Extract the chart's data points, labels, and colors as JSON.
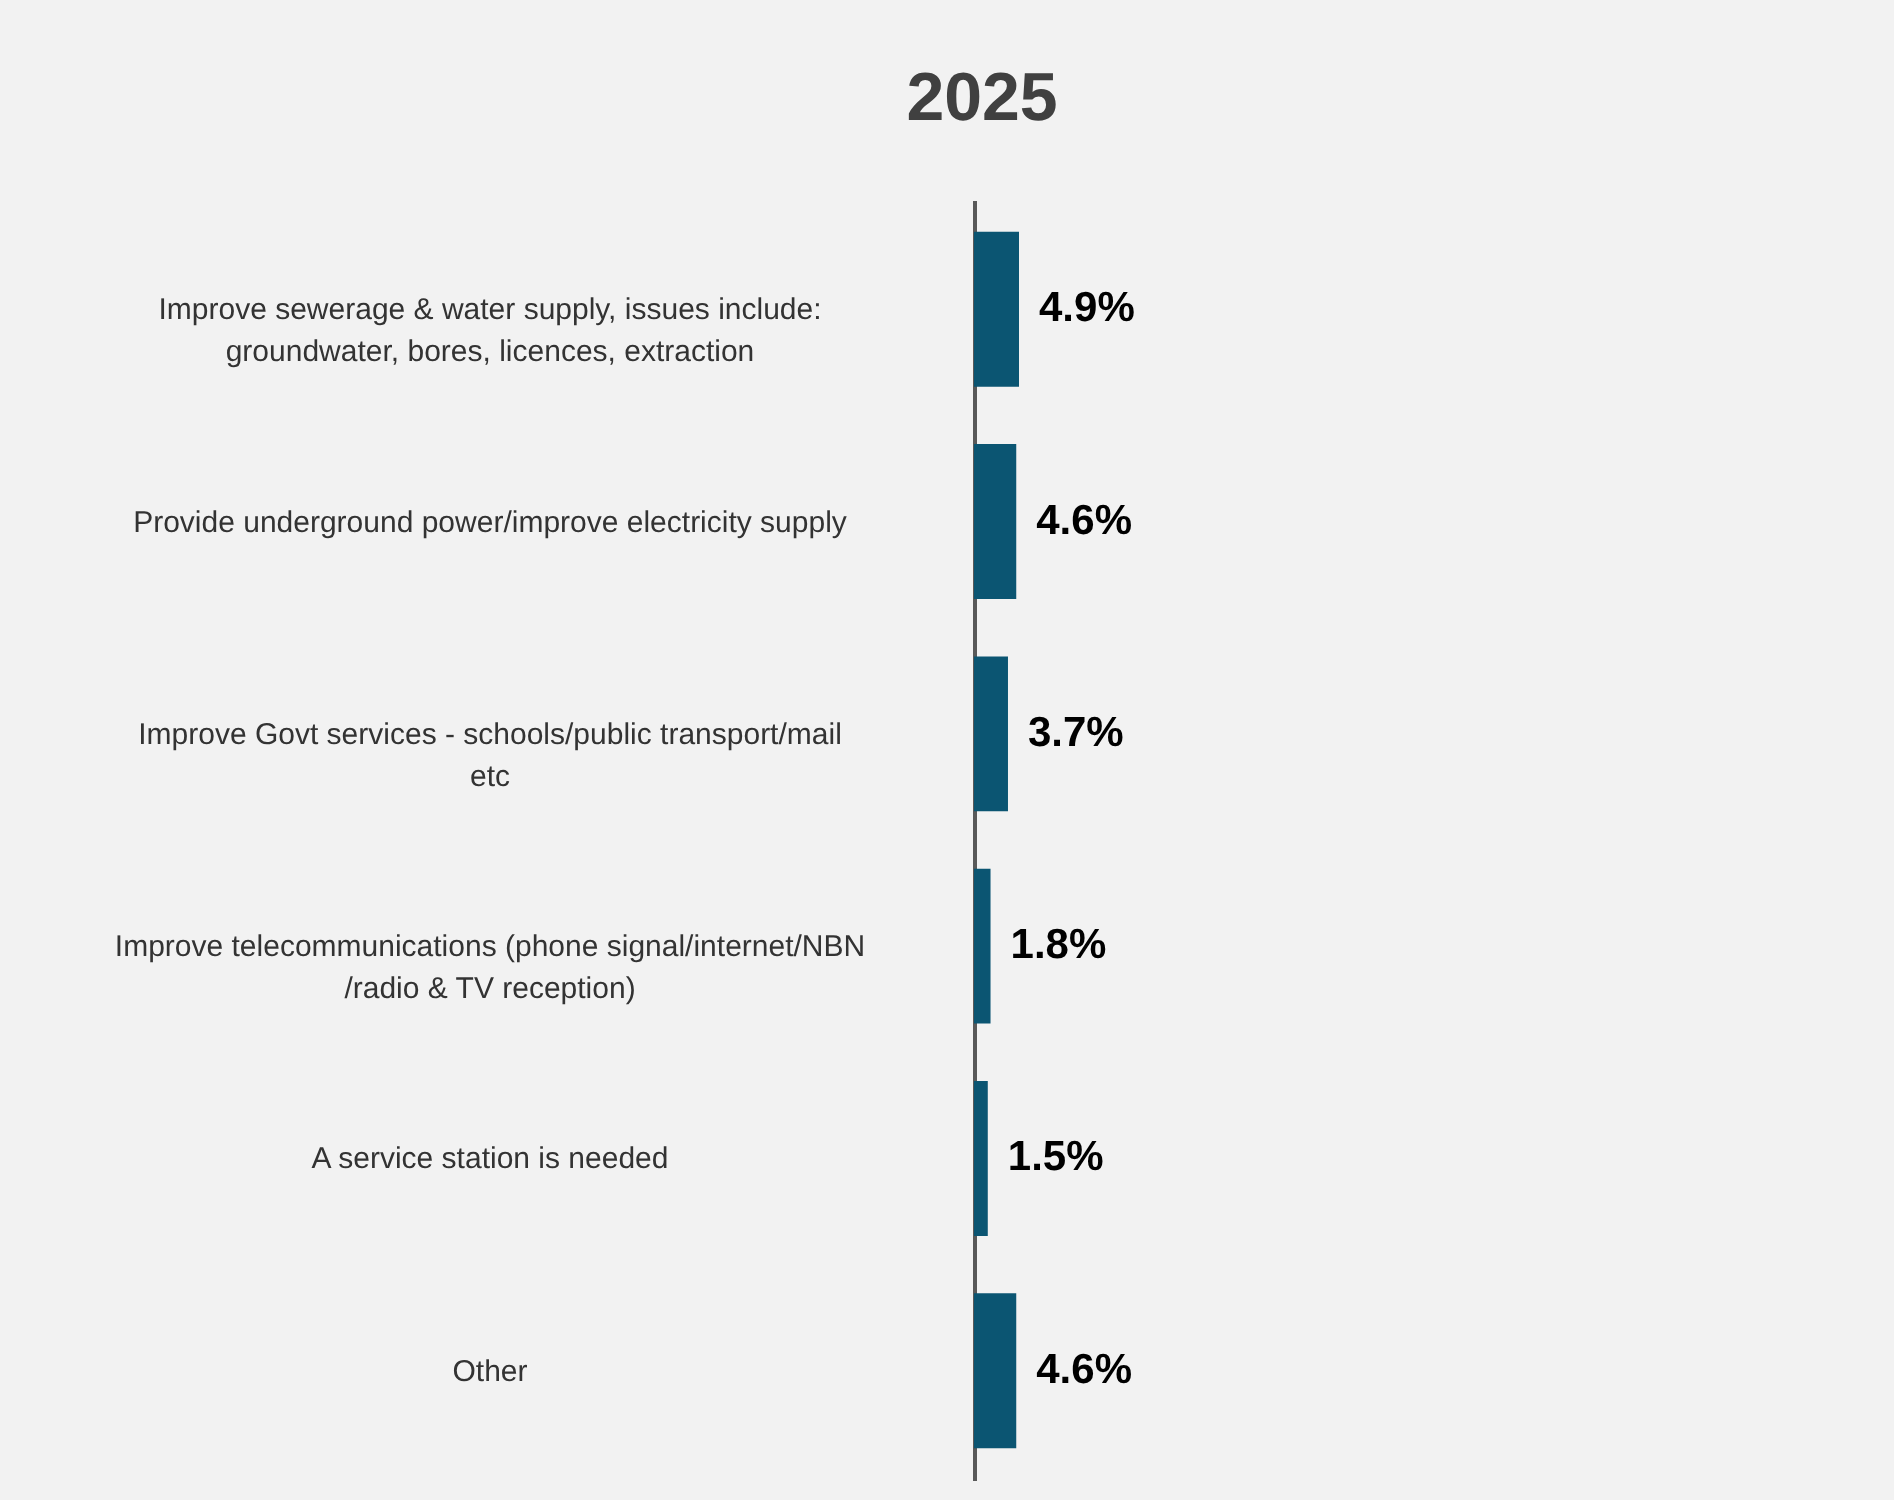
{
  "chart_data": {
    "type": "bar",
    "orientation": "horizontal",
    "title": "2025",
    "categories": [
      "Improve sewerage & water supply, issues include: groundwater, bores, licences, extraction",
      "Provide underground power/improve electricity supply",
      "Improve Govt services - schools/public transport/mail etc",
      "Improve telecommunications (phone signal/internet/NBN /radio & TV reception)",
      "A service station is needed",
      "Other"
    ],
    "values": [
      4.9,
      4.6,
      3.7,
      1.8,
      1.5,
      4.6
    ],
    "value_labels": [
      "4.9%",
      "4.6%",
      "3.7%",
      "1.8%",
      "1.5%",
      "4.6%"
    ],
    "color": "#0b5572",
    "grid": false,
    "tick_labels": false
  }
}
